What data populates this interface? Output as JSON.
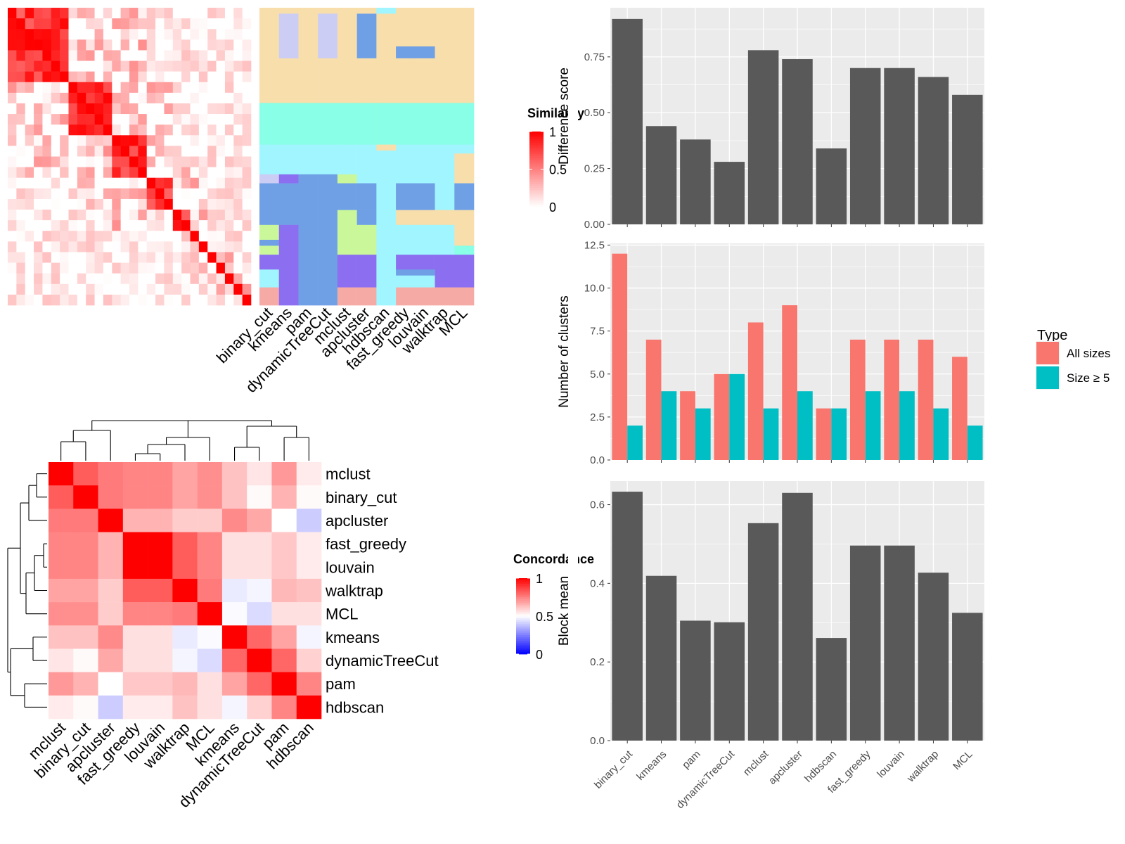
{
  "similarity_legend": {
    "title": "Similarity",
    "ticks": [
      "1",
      "0.5",
      "0"
    ]
  },
  "concordance_legend": {
    "title": "Concordance",
    "ticks": [
      "1",
      "0.5",
      "0"
    ]
  },
  "type_legend": {
    "title": "Type",
    "items": [
      "All sizes",
      "Size ≥ 5"
    ]
  },
  "colors": {
    "bar_gray": "#595959",
    "panel_bg": "#ebebeb",
    "grid": "#ffffff",
    "all_sizes": "#F8766D",
    "size_ge_5": "#00BFC4",
    "red": "#ff0000",
    "blue": "#0000ff",
    "cluster_palette": [
      "#f7deab",
      "#88ffe6",
      "#a0f5ff",
      "#6fa0e5",
      "#8c6ff0",
      "#c9f79a",
      "#f6aaa6",
      "#cccdf5"
    ]
  },
  "chart_data": [
    {
      "type": "heatmap",
      "title": "",
      "description_rows": "term similarity matrix, terms ordered by cluster",
      "cluster_block_sizes": [
        7,
        5,
        4,
        3,
        2,
        1,
        1,
        1,
        1,
        1,
        1,
        1
      ],
      "legend_title": "Similarity",
      "color_range": [
        0,
        1
      ],
      "column_labels": [
        "binary_cut",
        "kmeans",
        "pam",
        "dynamicTreeCut",
        "mclust",
        "apcluster",
        "hdbscan",
        "fast_greedy",
        "louvain",
        "walktrap",
        "MCL"
      ]
    },
    {
      "type": "bar",
      "categories": [
        "binary_cut",
        "kmeans",
        "pam",
        "dynamicTreeCut",
        "mclust",
        "apcluster",
        "hdbscan",
        "fast_greedy",
        "louvain",
        "walktrap",
        "MCL"
      ],
      "values": [
        0.92,
        0.44,
        0.38,
        0.28,
        0.78,
        0.74,
        0.34,
        0.7,
        0.7,
        0.66,
        0.58
      ],
      "xlabel": "",
      "ylabel": "Difference score",
      "ylim": [
        0,
        0.97
      ],
      "yticks": [
        "0.00",
        "0.25",
        "0.50",
        "0.75"
      ],
      "ytick_values": [
        0,
        0.25,
        0.5,
        0.75
      ],
      "grid": true
    },
    {
      "type": "bar",
      "categories": [
        "binary_cut",
        "kmeans",
        "pam",
        "dynamicTreeCut",
        "mclust",
        "apcluster",
        "hdbscan",
        "fast_greedy",
        "louvain",
        "walktrap",
        "MCL"
      ],
      "series": [
        {
          "name": "All sizes",
          "values": [
            12,
            7,
            4,
            5,
            8,
            9,
            3,
            7,
            7,
            7,
            6
          ]
        },
        {
          "name": "Size ≥ 5",
          "values": [
            2,
            4,
            3,
            5,
            3,
            4,
            3,
            4,
            4,
            3,
            2
          ]
        }
      ],
      "xlabel": "",
      "ylabel": "Number of clusters",
      "ylim": [
        0,
        12.6
      ],
      "yticks": [
        "0.0",
        "2.5",
        "5.0",
        "7.5",
        "10.0",
        "12.5"
      ],
      "ytick_values": [
        0,
        2.5,
        5,
        7.5,
        10,
        12.5
      ],
      "legend_title": "Type",
      "legend": "right",
      "grid": true
    },
    {
      "type": "bar",
      "categories": [
        "binary_cut",
        "kmeans",
        "pam",
        "dynamicTreeCut",
        "mclust",
        "apcluster",
        "hdbscan",
        "fast_greedy",
        "louvain",
        "walktrap",
        "MCL"
      ],
      "values": [
        0.633,
        0.419,
        0.305,
        0.301,
        0.553,
        0.63,
        0.261,
        0.496,
        0.496,
        0.427,
        0.325
      ],
      "xlabel": "",
      "ylabel": "Block mean",
      "ylim": [
        0,
        0.66
      ],
      "yticks": [
        "0.0",
        "0.2",
        "0.4",
        "0.6"
      ],
      "ytick_values": [
        0,
        0.2,
        0.4,
        0.6
      ],
      "grid": true
    },
    {
      "type": "heatmap",
      "title": "",
      "legend_title": "Concordance",
      "color_range": [
        0,
        1
      ],
      "row_labels": [
        "mclust",
        "binary_cut",
        "apcluster",
        "fast_greedy",
        "louvain",
        "walktrap",
        "MCL",
        "kmeans",
        "dynamicTreeCut",
        "pam",
        "hdbscan"
      ],
      "column_labels": [
        "mclust",
        "binary_cut",
        "apcluster",
        "fast_greedy",
        "louvain",
        "walktrap",
        "MCL",
        "kmeans",
        "dynamicTreeCut",
        "pam",
        "hdbscan"
      ],
      "matrix": [
        [
          1.0,
          0.82,
          0.76,
          0.74,
          0.74,
          0.68,
          0.72,
          0.62,
          0.55,
          0.7,
          0.54
        ],
        [
          0.82,
          1.0,
          0.76,
          0.74,
          0.74,
          0.68,
          0.72,
          0.62,
          0.51,
          0.65,
          0.51
        ],
        [
          0.76,
          0.76,
          1.0,
          0.65,
          0.65,
          0.6,
          0.6,
          0.73,
          0.67,
          0.5,
          0.4
        ],
        [
          0.74,
          0.74,
          0.65,
          1.0,
          1.0,
          0.82,
          0.74,
          0.56,
          0.56,
          0.61,
          0.54
        ],
        [
          0.74,
          0.74,
          0.65,
          1.0,
          1.0,
          0.82,
          0.74,
          0.56,
          0.56,
          0.61,
          0.54
        ],
        [
          0.68,
          0.68,
          0.6,
          0.82,
          0.82,
          1.0,
          0.76,
          0.46,
          0.48,
          0.64,
          0.62
        ],
        [
          0.72,
          0.72,
          0.6,
          0.74,
          0.74,
          0.76,
          1.0,
          0.49,
          0.43,
          0.56,
          0.56
        ],
        [
          0.62,
          0.62,
          0.73,
          0.56,
          0.56,
          0.46,
          0.49,
          1.0,
          0.8,
          0.68,
          0.48
        ],
        [
          0.55,
          0.51,
          0.67,
          0.56,
          0.56,
          0.48,
          0.43,
          0.8,
          1.0,
          0.8,
          0.59
        ],
        [
          0.7,
          0.65,
          0.5,
          0.61,
          0.61,
          0.64,
          0.56,
          0.68,
          0.8,
          1.0,
          0.74
        ],
        [
          0.54,
          0.51,
          0.4,
          0.54,
          0.54,
          0.62,
          0.56,
          0.48,
          0.59,
          0.74,
          1.0
        ]
      ]
    }
  ]
}
